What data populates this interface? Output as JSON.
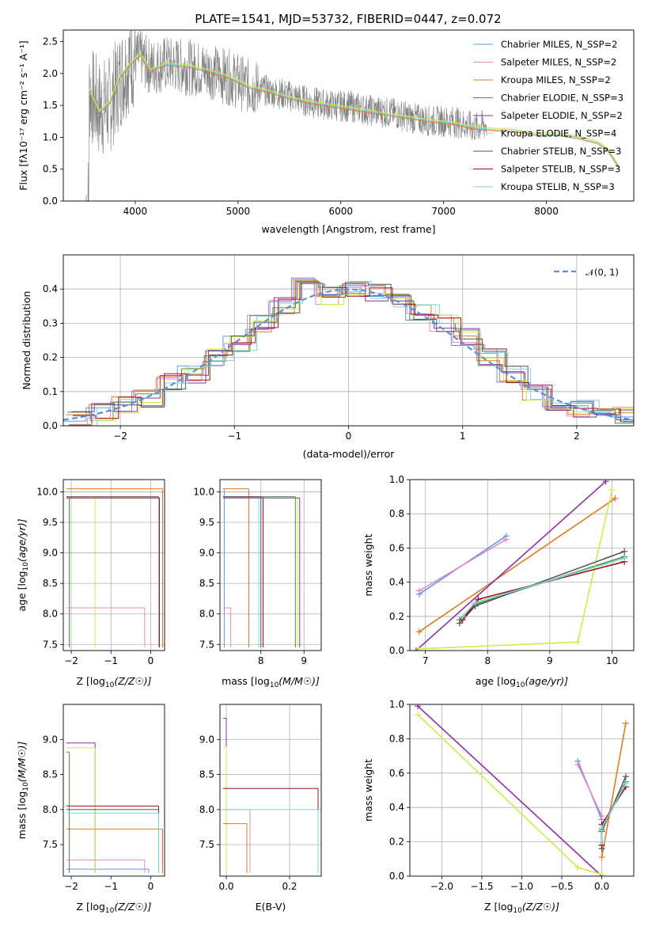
{
  "figure_title": "PLATE=1541, MJD=53732, FIBERID=0447, z=0.072",
  "series_colors": [
    "#6495ed",
    "#e88ac0",
    "#e07b1f",
    "#4d8f4d",
    "#8f2fa8",
    "#d4e84a",
    "#555555",
    "#a01010",
    "#7ad6e0"
  ],
  "chart_data": [
    {
      "id": "spectrum",
      "type": "line",
      "title": "PLATE=1541, MJD=53732, FIBERID=0447, z=0.072",
      "xlabel": "wavelength [Angstrom, rest frame]",
      "ylabel": "Flux [f",
      "ylabel_full": "Flux [fλ10⁻¹⁷ erg cm⁻² s⁻¹ A⁻¹]",
      "xlim": [
        3300,
        8850
      ],
      "ylim": [
        0,
        2.68
      ],
      "xticks": [
        "4000",
        "5000",
        "6000",
        "7000",
        "8000"
      ],
      "xtick_values": [
        4000,
        5000,
        6000,
        7000,
        8000
      ],
      "yticks": [
        "0.0",
        "0.5",
        "1.0",
        "1.5",
        "2.0",
        "2.5"
      ],
      "ytick_values": [
        0,
        0.5,
        1.0,
        1.5,
        2.0,
        2.5
      ],
      "legend": [
        "Chabrier MILES, N_SSP=2",
        "Salpeter MILES, N_SSP=2",
        "Kroupa MILES, N_SSP=2",
        "Chabrier ELODIE, N_SSP=3",
        "Salpeter ELODIE, N_SSP=2",
        "Kroupa ELODIE, N_SSP=4",
        "Chabrier STELIB, N_SSP=3",
        "Salpeter STELIB, N_SSP=3",
        "Kroupa STELIB, N_SSP=3"
      ],
      "legend_placement": "top-right",
      "data_x": [
        3550,
        3650,
        3750,
        3850,
        3950,
        4050,
        4150,
        4300,
        4500,
        4700,
        4900,
        5100,
        5300,
        5500,
        5700,
        5900,
        6100,
        6300,
        6500,
        6700,
        6900,
        7100,
        7300,
        7420
      ],
      "data_y": [
        1.7,
        1.45,
        1.5,
        1.9,
        2.2,
        2.25,
        2.1,
        2.15,
        2.1,
        2.05,
        1.95,
        1.8,
        1.72,
        1.65,
        1.55,
        1.5,
        1.48,
        1.42,
        1.38,
        1.3,
        1.25,
        1.25,
        1.15,
        1.2
      ],
      "model_x": [
        3550,
        3650,
        3750,
        3850,
        3950,
        4050,
        4150,
        4300,
        4500,
        4700,
        4900,
        5100,
        5300,
        5500,
        5700,
        5900,
        6100,
        6300,
        6500,
        6700,
        6900,
        7100,
        7300,
        7500,
        7700,
        7900,
        8100,
        8300,
        8500,
        8600,
        8700
      ],
      "model_y": [
        1.75,
        1.4,
        1.55,
        1.95,
        2.15,
        2.3,
        2.05,
        2.15,
        2.12,
        2.05,
        1.95,
        1.8,
        1.72,
        1.62,
        1.55,
        1.5,
        1.45,
        1.4,
        1.35,
        1.3,
        1.25,
        1.22,
        1.15,
        1.12,
        1.1,
        1.05,
        1.05,
        1.0,
        0.92,
        0.8,
        0.55
      ]
    },
    {
      "id": "residuals",
      "type": "line",
      "xlabel": "(data-model)/error",
      "ylabel": "Normed distribution",
      "xlim": [
        -2.5,
        2.5
      ],
      "ylim": [
        0,
        0.5
      ],
      "xticks": [
        "−2",
        "−1",
        "0",
        "1",
        "2"
      ],
      "xtick_values": [
        -2,
        -1,
        0,
        1,
        2
      ],
      "yticks": [
        "0.0",
        "0.1",
        "0.2",
        "0.3",
        "0.4"
      ],
      "ytick_values": [
        0,
        0.1,
        0.2,
        0.3,
        0.4
      ],
      "grid": true,
      "legend": [
        "𝒩(0, 1)"
      ],
      "legend_placement": "top-right",
      "normal": {
        "mu": 0,
        "sigma": 1
      },
      "bin_edges": [
        -2.5,
        -2.3,
        -2.1,
        -1.9,
        -1.7,
        -1.5,
        -1.3,
        -1.1,
        -0.9,
        -0.7,
        -0.5,
        -0.3,
        -0.1,
        0.1,
        0.3,
        0.5,
        0.7,
        0.9,
        1.1,
        1.3,
        1.5,
        1.7,
        1.9,
        2.1,
        2.3,
        2.5
      ],
      "hist_heights": [
        0.02,
        0.04,
        0.06,
        0.08,
        0.13,
        0.15,
        0.2,
        0.24,
        0.3,
        0.35,
        0.44,
        0.38,
        0.4,
        0.39,
        0.36,
        0.33,
        0.3,
        0.26,
        0.2,
        0.15,
        0.1,
        0.07,
        0.05,
        0.04,
        0.03
      ]
    },
    {
      "id": "age-vs-Z",
      "type": "scatter",
      "xlabel": "Z [log",
      "ylabel": "age  [log",
      "xlim": [
        -2.2,
        0.35
      ],
      "ylim": [
        7.4,
        10.2
      ],
      "xticks": [
        "−2",
        "−1",
        "0"
      ],
      "xtick_values": [
        -2,
        -1,
        0
      ],
      "yticks": [
        "7.5",
        "8.0",
        "8.5",
        "9.0",
        "9.5",
        "10.0"
      ],
      "ytick_values": [
        7.5,
        8.0,
        8.5,
        9.0,
        9.5,
        10.0
      ],
      "grid": true,
      "points": [
        {
          "x": 0.3,
          "y": 10.05,
          "s": 2
        },
        {
          "x": -2.05,
          "y": 9.9,
          "s": 4
        },
        {
          "x": -2.05,
          "y": 9.9,
          "s": 3
        },
        {
          "x": 0.2,
          "y": 9.92,
          "s": 6
        },
        {
          "x": -0.15,
          "y": 8.1,
          "s": 1
        },
        {
          "x": -1.4,
          "y": 9.9,
          "s": 5
        },
        {
          "x": 0.2,
          "y": 9.9,
          "s": 8
        },
        {
          "x": 0.22,
          "y": 9.9,
          "s": 7
        }
      ]
    },
    {
      "id": "age-vs-mass",
      "type": "scatter",
      "xlabel": "mass [log",
      "ylabel": "",
      "xlim": [
        7.05,
        9.4
      ],
      "ylim": [
        7.4,
        10.2
      ],
      "xticks": [
        "8",
        "9"
      ],
      "xtick_values": [
        8,
        9
      ],
      "yticks": [
        "7.5",
        "8.0",
        "8.5",
        "9.0",
        "9.5",
        "10.0"
      ],
      "ytick_values": [
        7.5,
        8.0,
        8.5,
        9.0,
        9.5,
        10.0
      ],
      "grid": true,
      "points": [
        {
          "x": 7.15,
          "y": 10.05,
          "s": 0
        },
        {
          "x": 7.3,
          "y": 8.1,
          "s": 1
        },
        {
          "x": 7.72,
          "y": 10.05,
          "s": 2
        },
        {
          "x": 7.95,
          "y": 9.92,
          "s": 8
        },
        {
          "x": 8.05,
          "y": 9.92,
          "s": 7
        },
        {
          "x": 8.85,
          "y": 9.9,
          "s": 5
        },
        {
          "x": 8.9,
          "y": 9.9,
          "s": 4
        },
        {
          "x": 8.8,
          "y": 9.92,
          "s": 3
        },
        {
          "x": 8.0,
          "y": 9.92,
          "s": 6
        }
      ]
    },
    {
      "id": "weight-vs-age",
      "type": "line",
      "xlabel": "age  [log",
      "ylabel": "mass weight",
      "xlim": [
        6.75,
        10.35
      ],
      "ylim": [
        0,
        1.0
      ],
      "xticks": [
        "7",
        "8",
        "9",
        "10"
      ],
      "xtick_values": [
        7,
        8,
        9,
        10
      ],
      "yticks": [
        "0.0",
        "0.2",
        "0.4",
        "0.6",
        "0.8",
        "1.0"
      ],
      "ytick_values": [
        0,
        0.2,
        0.4,
        0.6,
        0.8,
        1.0
      ],
      "grid": true,
      "series": [
        {
          "s": 0,
          "x": [
            6.9,
            8.3
          ],
          "y": [
            0.33,
            0.67
          ]
        },
        {
          "s": 1,
          "x": [
            6.9,
            8.3
          ],
          "y": [
            0.35,
            0.65
          ]
        },
        {
          "s": 2,
          "x": [
            6.9,
            10.05
          ],
          "y": [
            0.11,
            0.89
          ]
        },
        {
          "s": 3,
          "x": [
            7.55,
            7.8,
            10.2
          ],
          "y": [
            0.18,
            0.27,
            0.55
          ]
        },
        {
          "s": 4,
          "x": [
            6.85,
            9.9
          ],
          "y": [
            0.0,
            0.99
          ]
        },
        {
          "s": 5,
          "x": [
            6.9,
            9.45,
            10.0
          ],
          "y": [
            0.01,
            0.05,
            0.94
          ]
        },
        {
          "s": 6,
          "x": [
            7.55,
            7.8,
            10.2
          ],
          "y": [
            0.16,
            0.26,
            0.58
          ]
        },
        {
          "s": 7,
          "x": [
            7.6,
            7.85,
            10.2
          ],
          "y": [
            0.18,
            0.3,
            0.52
          ]
        },
        {
          "s": 8,
          "x": [
            7.6,
            7.8,
            10.2
          ],
          "y": [
            0.2,
            0.28,
            0.54
          ]
        }
      ]
    },
    {
      "id": "mass-vs-Z",
      "type": "scatter",
      "xlabel": "Z [log",
      "ylabel": "mass [log",
      "xlim": [
        -2.2,
        0.35
      ],
      "ylim": [
        7.05,
        9.5
      ],
      "xticks": [
        "−2",
        "−1",
        "0"
      ],
      "xtick_values": [
        -2,
        -1,
        0
      ],
      "yticks": [
        "7.5",
        "8.0",
        "8.5",
        "9.0"
      ],
      "ytick_values": [
        7.5,
        8.0,
        8.5,
        9.0
      ],
      "grid": false,
      "points": [
        {
          "x": -0.05,
          "y": 7.15,
          "s": 0
        },
        {
          "x": -0.15,
          "y": 7.28,
          "s": 1
        },
        {
          "x": 0.3,
          "y": 7.72,
          "s": 2
        },
        {
          "x": -2.05,
          "y": 8.82,
          "s": 3
        },
        {
          "x": -1.4,
          "y": 8.95,
          "s": 4
        },
        {
          "x": -1.4,
          "y": 8.88,
          "s": 5
        },
        {
          "x": 0.2,
          "y": 8.0,
          "s": 6
        },
        {
          "x": 0.2,
          "y": 8.05,
          "s": 7
        },
        {
          "x": 0.2,
          "y": 7.95,
          "s": 8
        }
      ]
    },
    {
      "id": "mass-vs-ebv",
      "type": "scatter",
      "xlabel": "E(B-V)",
      "ylabel": "",
      "xlim": [
        -0.02,
        0.3
      ],
      "ylim": [
        7.05,
        9.5
      ],
      "xticks": [
        "0.0",
        "0.2"
      ],
      "xtick_values": [
        0,
        0.2
      ],
      "yticks": [
        "7.5",
        "8.0",
        "8.5",
        "9.0"
      ],
      "ytick_values": [
        7.5,
        8.0,
        8.5,
        9.0
      ],
      "grid": true,
      "points": [
        {
          "x": 0.0,
          "y": 9.3,
          "s": 4
        },
        {
          "x": 0.0,
          "y": 8.9,
          "s": 5
        },
        {
          "x": 0.065,
          "y": 7.8,
          "s": 2
        },
        {
          "x": 0.075,
          "y": 8.0,
          "s": 1
        },
        {
          "x": 0.29,
          "y": 8.3,
          "s": 7
        },
        {
          "x": 0.29,
          "y": 8.0,
          "s": 8
        }
      ]
    },
    {
      "id": "weight-vs-Z",
      "type": "line",
      "xlabel": "Z [log",
      "ylabel": "mass weight",
      "xlim": [
        -2.4,
        0.4
      ],
      "ylim": [
        0,
        1.0
      ],
      "xticks": [
        "−2.0",
        "−1.5",
        "−1.0",
        "−0.5",
        "0.0"
      ],
      "xtick_values": [
        -2.0,
        -1.5,
        -1.0,
        -0.5,
        0.0
      ],
      "yticks": [
        "0.0",
        "0.2",
        "0.4",
        "0.6",
        "0.8",
        "1.0"
      ],
      "ytick_values": [
        0,
        0.2,
        0.4,
        0.6,
        0.8,
        1.0
      ],
      "grid": true,
      "series": [
        {
          "s": 0,
          "x": [
            -0.3,
            0.0
          ],
          "y": [
            0.67,
            0.33
          ]
        },
        {
          "s": 1,
          "x": [
            -0.3,
            0.0
          ],
          "y": [
            0.65,
            0.35
          ]
        },
        {
          "s": 2,
          "x": [
            0.0,
            0.3
          ],
          "y": [
            0.11,
            0.89
          ]
        },
        {
          "s": 3,
          "x": [
            0.0,
            0.0,
            0.3
          ],
          "y": [
            0.18,
            0.27,
            0.55
          ]
        },
        {
          "s": 4,
          "x": [
            -2.3,
            0.0
          ],
          "y": [
            0.99,
            0.0
          ]
        },
        {
          "s": 5,
          "x": [
            -2.3,
            -0.3,
            0.0
          ],
          "y": [
            0.94,
            0.05,
            0.01
          ]
        },
        {
          "s": 6,
          "x": [
            0.0,
            0.0,
            0.3
          ],
          "y": [
            0.16,
            0.26,
            0.58
          ]
        },
        {
          "s": 7,
          "x": [
            0.0,
            0.0,
            0.3
          ],
          "y": [
            0.18,
            0.3,
            0.52
          ]
        },
        {
          "s": 8,
          "x": [
            0.0,
            0.0,
            0.3
          ],
          "y": [
            0.2,
            0.28,
            0.54
          ]
        }
      ]
    }
  ]
}
